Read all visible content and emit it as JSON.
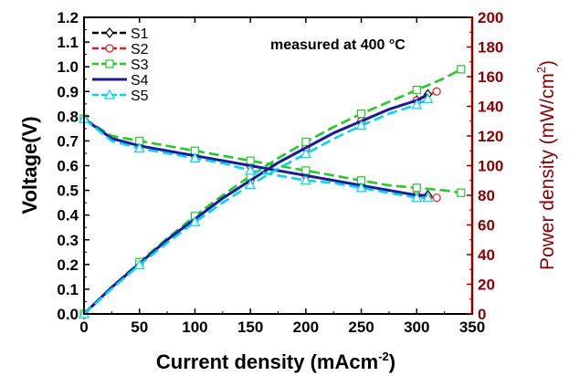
{
  "chart_data": {
    "type": "line",
    "annotation": "measured at 400 °C",
    "xlabel": "Current density (mAcm-2)",
    "xlabel_main": "Current density (mAcm",
    "xlabel_sup": "-2",
    "xlabel_close": ")",
    "ylabel": "Voltage(V)",
    "y2label": "Power density (mW/cm2)",
    "y2label_main": "Power density (mW/cm",
    "y2label_sup": "2",
    "y2label_close": ")",
    "xlim": [
      0,
      350
    ],
    "ylim": [
      0,
      1.2
    ],
    "y2lim": [
      0,
      200
    ],
    "x_ticks": [
      "0",
      "50",
      "100",
      "150",
      "200",
      "250",
      "300",
      "350"
    ],
    "y_ticks": [
      "0.0",
      "0.1",
      "0.2",
      "0.3",
      "0.4",
      "0.5",
      "0.6",
      "0.7",
      "0.8",
      "0.9",
      "1.0",
      "1.1",
      "1.2"
    ],
    "y2_ticks": [
      "0",
      "20",
      "40",
      "60",
      "80",
      "100",
      "120",
      "140",
      "160",
      "180",
      "200"
    ],
    "legend_position": "top-left",
    "axis_color_right": "#8b0000",
    "series": [
      {
        "name": "S1",
        "color": "#000000",
        "marker": "diamond",
        "voltage": {
          "x": [
            0,
            25,
            50,
            75,
            100,
            125,
            150,
            175,
            200,
            225,
            250,
            275,
            300,
            310
          ],
          "y": [
            0.79,
            0.71,
            0.68,
            0.66,
            0.64,
            0.62,
            0.6,
            0.58,
            0.56,
            0.54,
            0.52,
            0.5,
            0.48,
            0.48
          ]
        },
        "power": {
          "x": [
            0,
            25,
            50,
            75,
            100,
            125,
            150,
            175,
            200,
            225,
            250,
            275,
            300,
            310
          ],
          "y": [
            0,
            18,
            34,
            50,
            64,
            78,
            90,
            102,
            112,
            122,
            130,
            138,
            144,
            148
          ]
        }
      },
      {
        "name": "S2",
        "color": "#e31a1c",
        "marker": "circle",
        "voltage": {
          "x": [
            0,
            25,
            50,
            75,
            100,
            125,
            150,
            175,
            200,
            225,
            250,
            275,
            300,
            318
          ],
          "y": [
            0.79,
            0.71,
            0.68,
            0.66,
            0.64,
            0.62,
            0.6,
            0.58,
            0.56,
            0.54,
            0.52,
            0.5,
            0.48,
            0.47
          ]
        },
        "power": {
          "x": [
            0,
            25,
            50,
            75,
            100,
            125,
            150,
            175,
            200,
            225,
            250,
            275,
            300,
            318
          ],
          "y": [
            0,
            18,
            34,
            50,
            64,
            78,
            90,
            102,
            112,
            122,
            130,
            138,
            144,
            150
          ]
        }
      },
      {
        "name": "S3",
        "color": "#22cc22",
        "marker": "square",
        "voltage": {
          "x": [
            0,
            25,
            50,
            75,
            100,
            125,
            150,
            175,
            200,
            225,
            250,
            275,
            300,
            325,
            340
          ],
          "y": [
            0.79,
            0.72,
            0.7,
            0.68,
            0.66,
            0.64,
            0.62,
            0.6,
            0.58,
            0.56,
            0.54,
            0.52,
            0.51,
            0.5,
            0.49
          ]
        },
        "power": {
          "x": [
            0,
            25,
            50,
            75,
            100,
            125,
            150,
            175,
            200,
            225,
            250,
            275,
            300,
            325,
            340
          ],
          "y": [
            0,
            18,
            35,
            51,
            66,
            80,
            93,
            105,
            116,
            126,
            135,
            143,
            151,
            159,
            165
          ]
        }
      },
      {
        "name": "S4",
        "color": "#1a1aa6",
        "marker": "none",
        "voltage": {
          "x": [
            0,
            25,
            50,
            75,
            100,
            125,
            150,
            175,
            200,
            225,
            250,
            275,
            300,
            310
          ],
          "y": [
            0.79,
            0.71,
            0.68,
            0.66,
            0.64,
            0.62,
            0.6,
            0.58,
            0.56,
            0.54,
            0.52,
            0.5,
            0.48,
            0.48
          ]
        },
        "power": {
          "x": [
            0,
            25,
            50,
            75,
            100,
            125,
            150,
            175,
            200,
            225,
            250,
            275,
            300,
            310
          ],
          "y": [
            0,
            18,
            34,
            50,
            64,
            78,
            90,
            102,
            112,
            122,
            130,
            138,
            144,
            148
          ]
        }
      },
      {
        "name": "S5",
        "color": "#00d5f5",
        "marker": "triangle",
        "voltage": {
          "x": [
            0,
            25,
            50,
            75,
            100,
            125,
            150,
            175,
            200,
            225,
            250,
            275,
            300,
            310
          ],
          "y": [
            0.79,
            0.7,
            0.67,
            0.65,
            0.63,
            0.61,
            0.58,
            0.56,
            0.54,
            0.53,
            0.51,
            0.49,
            0.47,
            0.47
          ]
        },
        "power": {
          "x": [
            0,
            25,
            50,
            75,
            100,
            125,
            150,
            175,
            200,
            225,
            250,
            275,
            300,
            310
          ],
          "y": [
            0,
            17,
            33,
            48,
            62,
            75,
            87,
            98,
            108,
            118,
            127,
            135,
            141,
            145
          ]
        }
      }
    ]
  }
}
